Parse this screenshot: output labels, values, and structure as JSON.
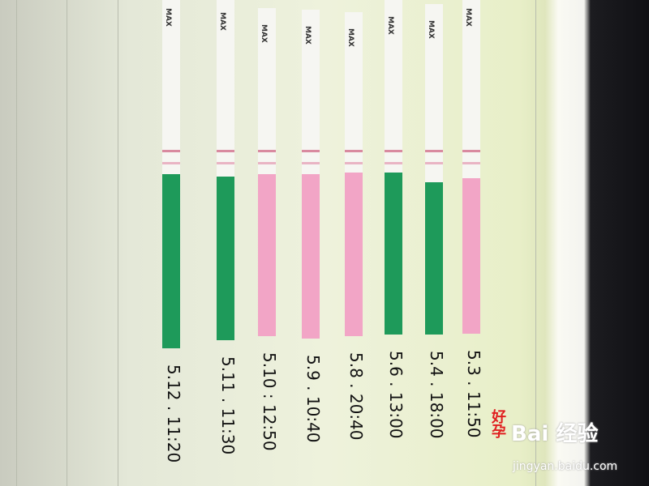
{
  "strips": [
    {
      "label": "5.12 . 11:20",
      "color": "#1e9a5a"
    },
    {
      "label": "5.11 . 11:30",
      "color": "#1e9a5a"
    },
    {
      "label": "5.10 : 12:50",
      "color": "#f2a5c6"
    },
    {
      "label": "5.9 . 10:40",
      "color": "#f2a5c6"
    },
    {
      "label": "5.8 . 20:40",
      "color": "#f2a5c6"
    },
    {
      "label": "5.6 . 13:00",
      "color": "#1e9a5a"
    },
    {
      "label": "5.4 . 18:00",
      "color": "#1e9a5a"
    },
    {
      "label": "5.3 . 11:50",
      "color": "#f2a5c6"
    }
  ],
  "strip_text": "MAX",
  "annotation": "好孕",
  "watermark": {
    "brand": "Bai 经验",
    "url": "jingyan.baidu.com"
  }
}
